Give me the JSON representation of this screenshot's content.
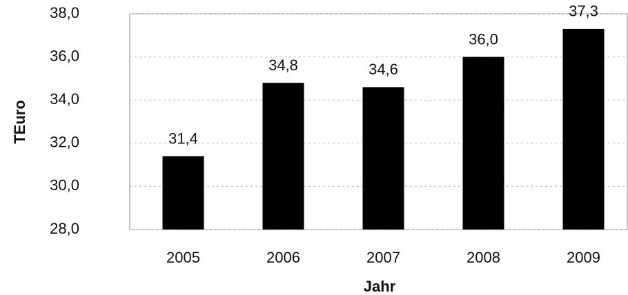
{
  "chart_data": {
    "type": "bar",
    "categories": [
      "2005",
      "2006",
      "2007",
      "2008",
      "2009"
    ],
    "values": [
      31.4,
      34.8,
      34.6,
      36.0,
      37.3
    ],
    "value_labels": [
      "31,4",
      "34,8",
      "34,6",
      "36,0",
      "37,3"
    ],
    "color": "#000000",
    "ylim": [
      28,
      38
    ],
    "yticks": [
      {
        "value": 28,
        "label": "28,0"
      },
      {
        "value": 30,
        "label": "30,0"
      },
      {
        "value": 32,
        "label": "32,0"
      },
      {
        "value": 34,
        "label": "34,0"
      },
      {
        "value": 36,
        "label": "36,0"
      },
      {
        "value": 38,
        "label": "38,0"
      }
    ],
    "x_label": "Jahr",
    "y_label": "TEuro",
    "grid": true
  }
}
